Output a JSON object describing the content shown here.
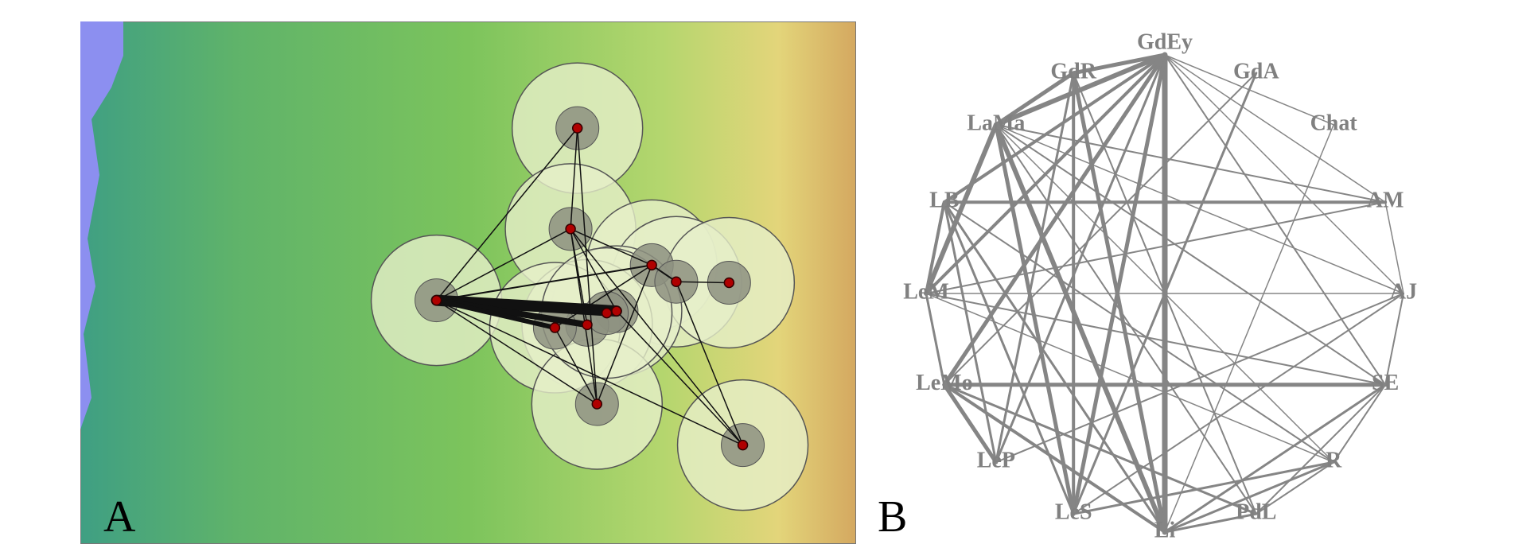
{
  "panel_a": {
    "label": "A"
  },
  "panel_b": {
    "label": "B",
    "nodes": [
      "GdEy",
      "GdA",
      "Chat",
      "AM",
      "AJ",
      "SE",
      "R",
      "PdL",
      "Li",
      "LeS",
      "LeP",
      "LeMo",
      "LeM",
      "LB",
      "LaMa",
      "GdR"
    ]
  }
}
